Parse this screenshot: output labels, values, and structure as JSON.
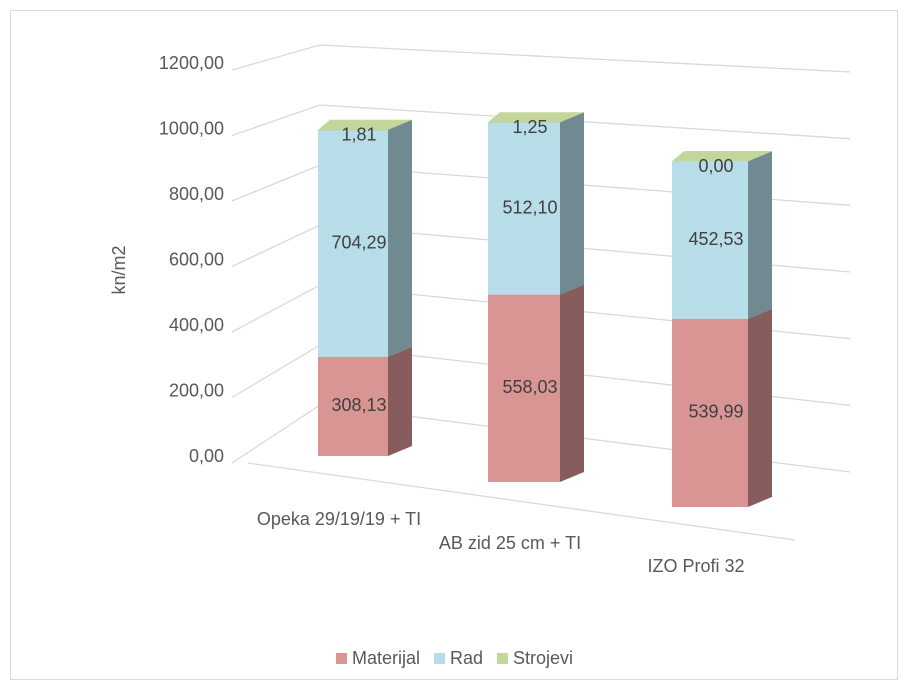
{
  "chart_data": {
    "type": "bar",
    "stacked": true,
    "y_label": "kn/m2",
    "categories": [
      "Opeka 29/19/19 + TI",
      "AB zid 25 cm + TI",
      "IZO Profi 32"
    ],
    "series": [
      {
        "name": "Materijal",
        "color": "#d99594",
        "values": [
          308.13,
          558.03,
          539.99
        ],
        "value_labels": [
          "308,13",
          "558,03",
          "539,99"
        ]
      },
      {
        "name": "Rad",
        "color": "#b7dde8",
        "values": [
          704.29,
          512.1,
          452.53
        ],
        "value_labels": [
          "704,29",
          "512,10",
          "452,53"
        ]
      },
      {
        "name": "Strojevi",
        "color": "#c3d69b",
        "values": [
          1.81,
          1.25,
          0.0
        ],
        "value_labels": [
          "1,81",
          "1,25",
          "0,00"
        ]
      }
    ],
    "ylim": [
      0,
      1200
    ],
    "yticks": [
      {
        "value": 0,
        "label": "0,00"
      },
      {
        "value": 200,
        "label": "200,00"
      },
      {
        "value": 400,
        "label": "400,00"
      },
      {
        "value": 600,
        "label": "600,00"
      },
      {
        "value": 800,
        "label": "800,00"
      },
      {
        "value": 1000,
        "label": "1000,00"
      },
      {
        "value": 1200,
        "label": "1200,00"
      }
    ],
    "grid": true,
    "legend": "bottom"
  }
}
